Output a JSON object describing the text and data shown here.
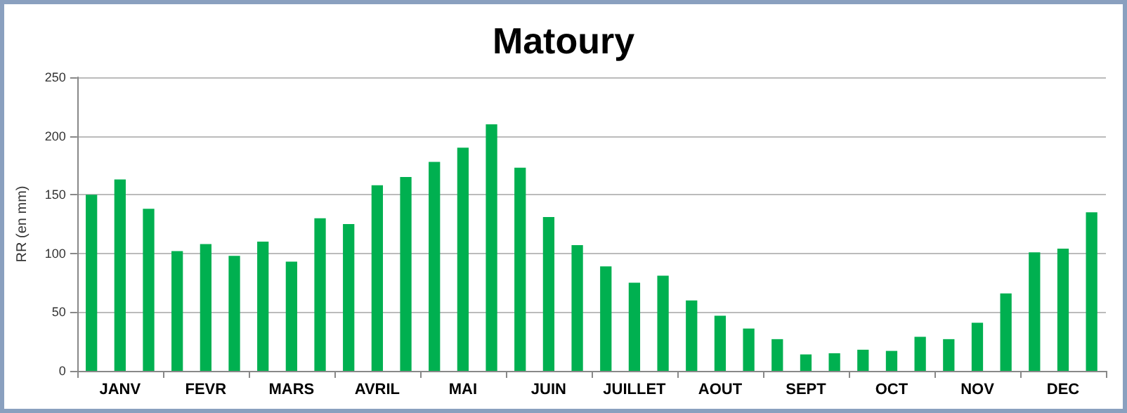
{
  "chart_data": {
    "type": "bar",
    "title": "Matoury",
    "ylabel": "RR (en mm)",
    "categories": [
      null,
      "JANV",
      null,
      null,
      "FEVR",
      null,
      null,
      "MARS",
      null,
      null,
      "AVRIL",
      null,
      null,
      "MAI",
      null,
      null,
      "JUIN",
      null,
      null,
      "JUILLET",
      null,
      null,
      "AOUT",
      null,
      null,
      "SEPT",
      null,
      null,
      "OCT",
      null,
      null,
      "NOV",
      null,
      null,
      "DEC",
      null
    ],
    "values": [
      150,
      163,
      138,
      102,
      108,
      98,
      110,
      93,
      130,
      125,
      158,
      165,
      178,
      190,
      210,
      173,
      131,
      107,
      89,
      75,
      81,
      60,
      47,
      36,
      27,
      14,
      15,
      18,
      17,
      29,
      27,
      41,
      66,
      101,
      104,
      135
    ],
    "color": "#00b050",
    "ylim": [
      0,
      250
    ],
    "yticks": [
      0,
      50,
      100,
      150,
      200,
      250
    ],
    "grid": "y"
  }
}
